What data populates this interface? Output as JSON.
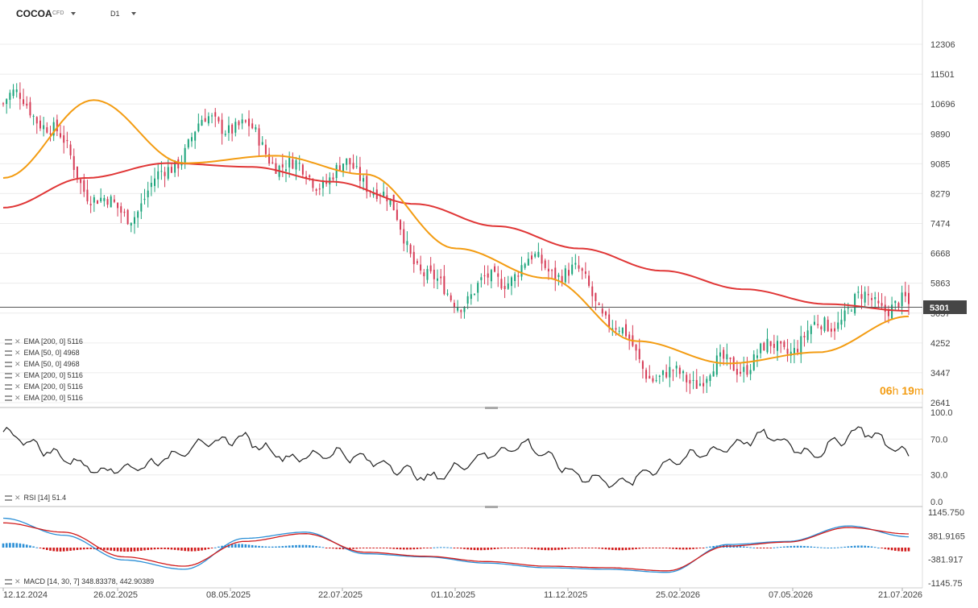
{
  "header": {
    "symbol": "COCOA",
    "symbol_type": "CFD",
    "timeframe": "D1"
  },
  "price_axis": [
    "12306",
    "11501",
    "10696",
    "9890",
    "9085",
    "8279",
    "7474",
    "6668",
    "5863",
    "5057",
    "4252",
    "3447",
    "2641"
  ],
  "current_price": "5301",
  "countdown": {
    "hours": "06",
    "h": "h",
    "minutes": "19",
    "m": "m"
  },
  "indicators": [
    "EMA [200, 0] 5116",
    "EMA [50, 0] 4968",
    "EMA [50, 0] 4968",
    "EMA [200, 0] 5116",
    "EMA [200, 0] 5116",
    "EMA [200, 0] 5116"
  ],
  "rsi": {
    "label": "RSI [14] 51.4",
    "axis": [
      "100.0",
      "70.0",
      "30.0",
      "0.0"
    ]
  },
  "macd": {
    "label": "MACD [14, 30, 7] 348.83378, 442.90389",
    "axis": [
      "1145.750",
      "381.9165",
      "-381.917",
      "-1145.75"
    ]
  },
  "date_axis": [
    "12.12.2024",
    "26.02.2025",
    "08.05.2025",
    "22.07.2025",
    "01.10.2025",
    "11.12.2025",
    "25.02.2026",
    "07.05.2026",
    "21.07.2026"
  ],
  "colors": {
    "up": "#1aa37a",
    "down": "#d63a55",
    "ema200": "#e03636",
    "ema50": "#f39c12",
    "macd_pos": "#2b8fd6",
    "macd_neg": "#d11b1b",
    "rsi": "#222222",
    "price_line": "#555555",
    "price_box": "#464646",
    "countdown": "#f39c12"
  },
  "chart_data": [
    {
      "type": "candlestick",
      "title": "COCOA D1",
      "ylim": [
        2641,
        12306
      ],
      "close_series": {
        "x": [
          "12.12.2024",
          "26.02.2025",
          "08.05.2025",
          "22.07.2025",
          "01.10.2025",
          "11.12.2025",
          "25.02.2026",
          "07.05.2026",
          "21.07.2026"
        ],
        "approx_close": [
          10700,
          8100,
          10000,
          8700,
          5800,
          6100,
          3000,
          4500,
          5301
        ]
      },
      "ema200_points": [
        7900,
        8700,
        9100,
        9000,
        8600,
        8000,
        7400,
        6800,
        6200,
        5700,
        5300,
        5116
      ],
      "ema50_points": [
        8700,
        10800,
        9100,
        9300,
        8800,
        6800,
        6000,
        4300,
        3700,
        4000,
        4968
      ]
    },
    {
      "type": "line",
      "title": "RSI [14]",
      "ylim": [
        0,
        100
      ],
      "approx_points": [
        80,
        55,
        35,
        40,
        62,
        72,
        48,
        55,
        42,
        25,
        50,
        65,
        30,
        20,
        45,
        58,
        75,
        52,
        82,
        51.4
      ]
    },
    {
      "type": "bar",
      "title": "MACD [14, 30, 7]",
      "ylim": [
        -1145.75,
        1145.75
      ],
      "approx_macd": [
        950,
        400,
        -400,
        -700,
        300,
        500,
        -200,
        -300,
        -500,
        -650,
        -700,
        -800,
        100,
        200,
        700,
        348.83
      ],
      "approx_signal": [
        800,
        500,
        -300,
        -600,
        200,
        450,
        -150,
        -280,
        -450,
        -600,
        -650,
        -750,
        50,
        180,
        650,
        442.9
      ]
    }
  ]
}
